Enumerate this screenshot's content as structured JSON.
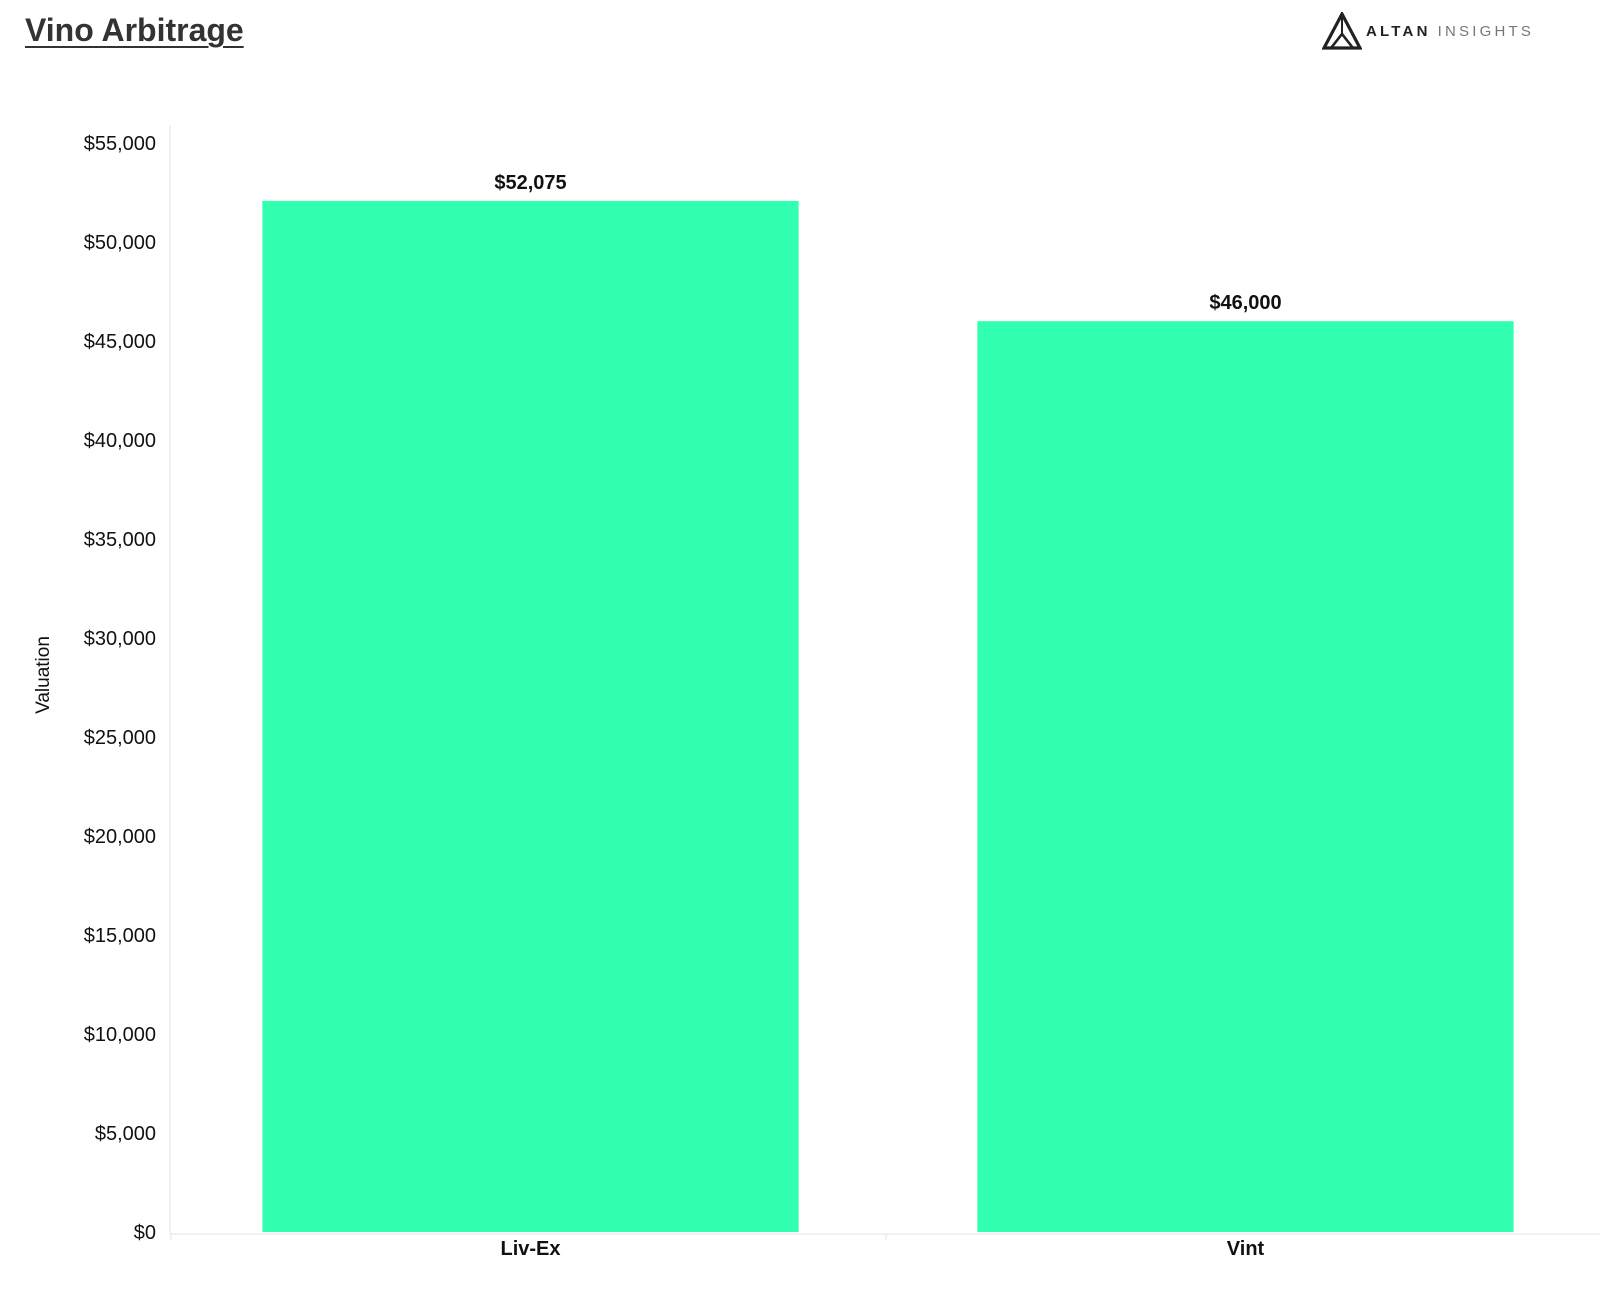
{
  "title": "Vino Arbitrage",
  "brand": {
    "name_strong": "ALTAN",
    "name_light": "INSIGHTS",
    "logo_icon": "mountain-triangle-icon"
  },
  "colors": {
    "bar": "#33FFB0",
    "text": "#111111",
    "title": "#333333"
  },
  "chart_data": {
    "type": "bar",
    "categories": [
      "Liv-Ex",
      "Vint"
    ],
    "values": [
      52075,
      46000
    ],
    "data_labels": [
      "$52,075",
      "$46,000"
    ],
    "xlabel": "",
    "ylabel": "Valuation",
    "ylim": [
      0,
      55000
    ],
    "yticks": [
      0,
      5000,
      10000,
      15000,
      20000,
      25000,
      30000,
      35000,
      40000,
      45000,
      50000,
      55000
    ],
    "ytick_labels": [
      "$0",
      "$5,000",
      "$10,000",
      "$15,000",
      "$20,000",
      "$25,000",
      "$30,000",
      "$35,000",
      "$40,000",
      "$45,000",
      "$50,000",
      "$55,000"
    ],
    "grid": false,
    "legend": "none"
  }
}
